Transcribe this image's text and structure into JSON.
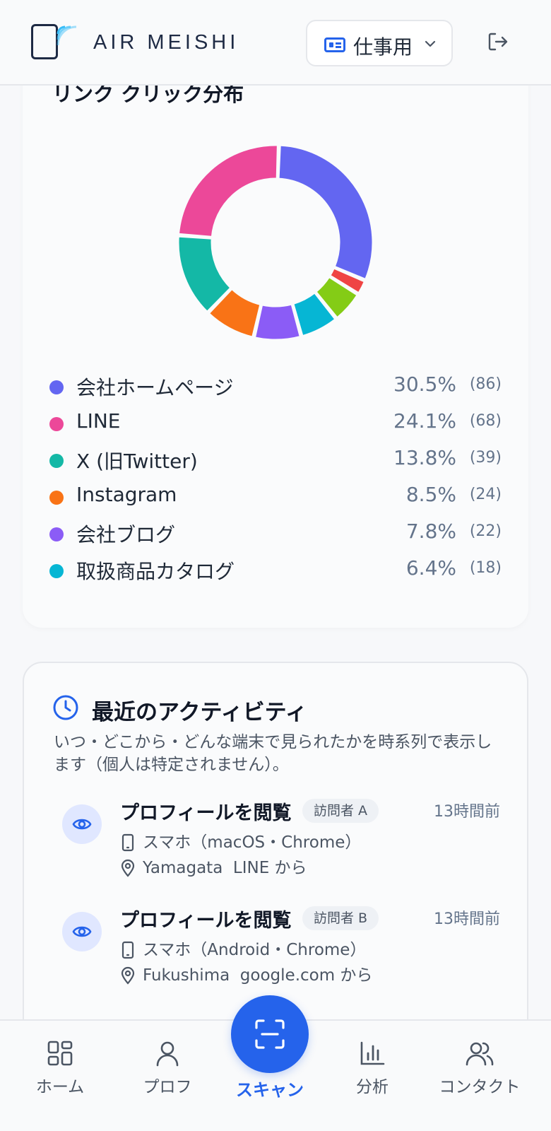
{
  "header": {
    "brand": "AIR MEISHI",
    "mode_select": "仕事用"
  },
  "link_chart": {
    "title": "リンク クリック分布"
  },
  "chart_data": {
    "type": "pie",
    "title": "リンク クリック分布",
    "categories": [
      "会社ホームページ",
      "LINE",
      "X (旧Twitter)",
      "Instagram",
      "会社ブログ",
      "取扱商品カタログ",
      "Other (red)",
      "Other (green)"
    ],
    "values": [
      86,
      68,
      39,
      24,
      22,
      18,
      7,
      15
    ],
    "colors": [
      "#6366f1",
      "#ec4899",
      "#14b8a6",
      "#f97316",
      "#8b5cf6",
      "#06b6d4",
      "#ef4444",
      "#84cc16"
    ]
  },
  "legend": [
    {
      "name": "会社ホームページ",
      "percent": "30.5%",
      "count": "(86)",
      "color": "#6366f1"
    },
    {
      "name": "LINE",
      "percent": "24.1%",
      "count": "(68)",
      "color": "#ec4899"
    },
    {
      "name": "X (旧Twitter)",
      "percent": "13.8%",
      "count": "(39)",
      "color": "#14b8a6"
    },
    {
      "name": "Instagram",
      "percent": "8.5%",
      "count": "(24)",
      "color": "#f97316"
    },
    {
      "name": "会社ブログ",
      "percent": "7.8%",
      "count": "(22)",
      "color": "#8b5cf6"
    },
    {
      "name": "取扱商品カタログ",
      "percent": "6.4%",
      "count": "(18)",
      "color": "#06b6d4"
    }
  ],
  "activity": {
    "title": "最近のアクティビティ",
    "description": "いつ・どこから・どんな端末で見られたかを時系列で表示します（個人は特定されません）。",
    "items": [
      {
        "action": "プロフィールを閲覧",
        "visitor": "訪問者 A",
        "time": "13時間前",
        "device": "スマホ（macOS・Chrome）",
        "location": "Yamagata  LINE から"
      },
      {
        "action": "プロフィールを閲覧",
        "visitor": "訪問者 B",
        "time": "13時間前",
        "device": "スマホ（Android・Chrome）",
        "location": "Fukushima  google.com から"
      }
    ]
  },
  "nav": {
    "home": "ホーム",
    "profile": "プロフ",
    "scan": "スキャン",
    "analytics": "分析",
    "contacts": "コンタクト"
  }
}
